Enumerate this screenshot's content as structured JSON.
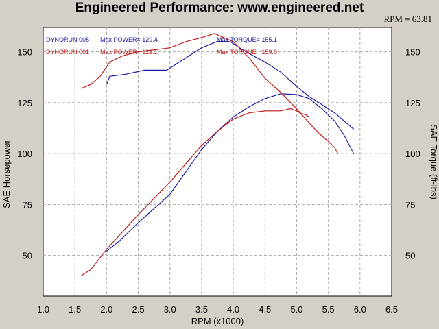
{
  "chart_data": {
    "type": "line",
    "title": "Engineered Performance:  www.engineered.net",
    "readout": "RPM = 63.81",
    "xlabel": "RPM (x1000)",
    "ylabel_left": "SAE Horsepower",
    "ylabel_right": "SAE Torque (ft-lbs)",
    "xlim": [
      1.0,
      6.5
    ],
    "ylim": [
      30,
      162
    ],
    "x_ticks": [
      "1.0",
      "1.5",
      "2.0",
      "2.5",
      "3.0",
      "3.5",
      "4.0",
      "4.5",
      "5.0",
      "5.5",
      "6.0",
      "6.5"
    ],
    "y_ticks": [
      "50",
      "75",
      "100",
      "125",
      "150"
    ],
    "grid": true,
    "legend": [
      {
        "run": "DYNORUN.008",
        "power": "Max POWER= 129.4",
        "torque": "Max TORQUE= 155.1",
        "color": "#1a1aa0"
      },
      {
        "run": "DYNORUN.001",
        "power": "Max POWER= 122.1",
        "torque": "Max TORQUE= 159.0",
        "color": "#c01818"
      }
    ],
    "series": [
      {
        "color": "#1a1aa0",
        "kind": "power",
        "x": [
          2.0,
          2.2,
          2.5,
          2.75,
          3.0,
          3.25,
          3.5,
          3.75,
          4.0,
          4.25,
          4.5,
          4.75,
          5.0,
          5.2,
          5.4,
          5.6,
          5.75,
          5.9
        ],
        "y": [
          52,
          57,
          66,
          73,
          80,
          91,
          102,
          111,
          118,
          123,
          127,
          129.4,
          129,
          127,
          122,
          116,
          109,
          100
        ]
      },
      {
        "color": "#1a1aa0",
        "kind": "torque",
        "x": [
          2.0,
          2.05,
          2.3,
          2.6,
          2.95,
          3.2,
          3.5,
          3.75,
          3.95,
          4.2,
          4.5,
          4.75,
          5.0,
          5.2,
          5.4,
          5.6,
          5.75,
          5.9
        ],
        "y": [
          134,
          138,
          139,
          141,
          141,
          146,
          152,
          155.1,
          155,
          150,
          145,
          140,
          133,
          128,
          124,
          120,
          116,
          112
        ]
      },
      {
        "color": "#c01818",
        "kind": "power",
        "x": [
          1.6,
          1.75,
          2.0,
          2.5,
          3.0,
          3.5,
          3.75,
          4.0,
          4.25,
          4.5,
          4.75,
          4.9,
          5.0,
          5.05,
          5.15,
          5.2
        ],
        "y": [
          40,
          43,
          53,
          70,
          86,
          104,
          111,
          117,
          120,
          121,
          121,
          122.1,
          121,
          120,
          119,
          118
        ]
      },
      {
        "color": "#c01818",
        "kind": "torque",
        "x": [
          1.6,
          1.75,
          1.9,
          2.05,
          2.25,
          2.5,
          2.75,
          3.0,
          3.25,
          3.5,
          3.7,
          4.0,
          4.25,
          4.5,
          4.75,
          5.0,
          5.2,
          5.35,
          5.5,
          5.6,
          5.65
        ],
        "y": [
          132,
          134,
          138,
          145,
          148,
          150,
          151,
          152,
          155,
          157,
          159.0,
          155,
          147,
          137,
          130,
          122,
          115,
          110,
          106,
          103,
          100
        ]
      }
    ]
  }
}
